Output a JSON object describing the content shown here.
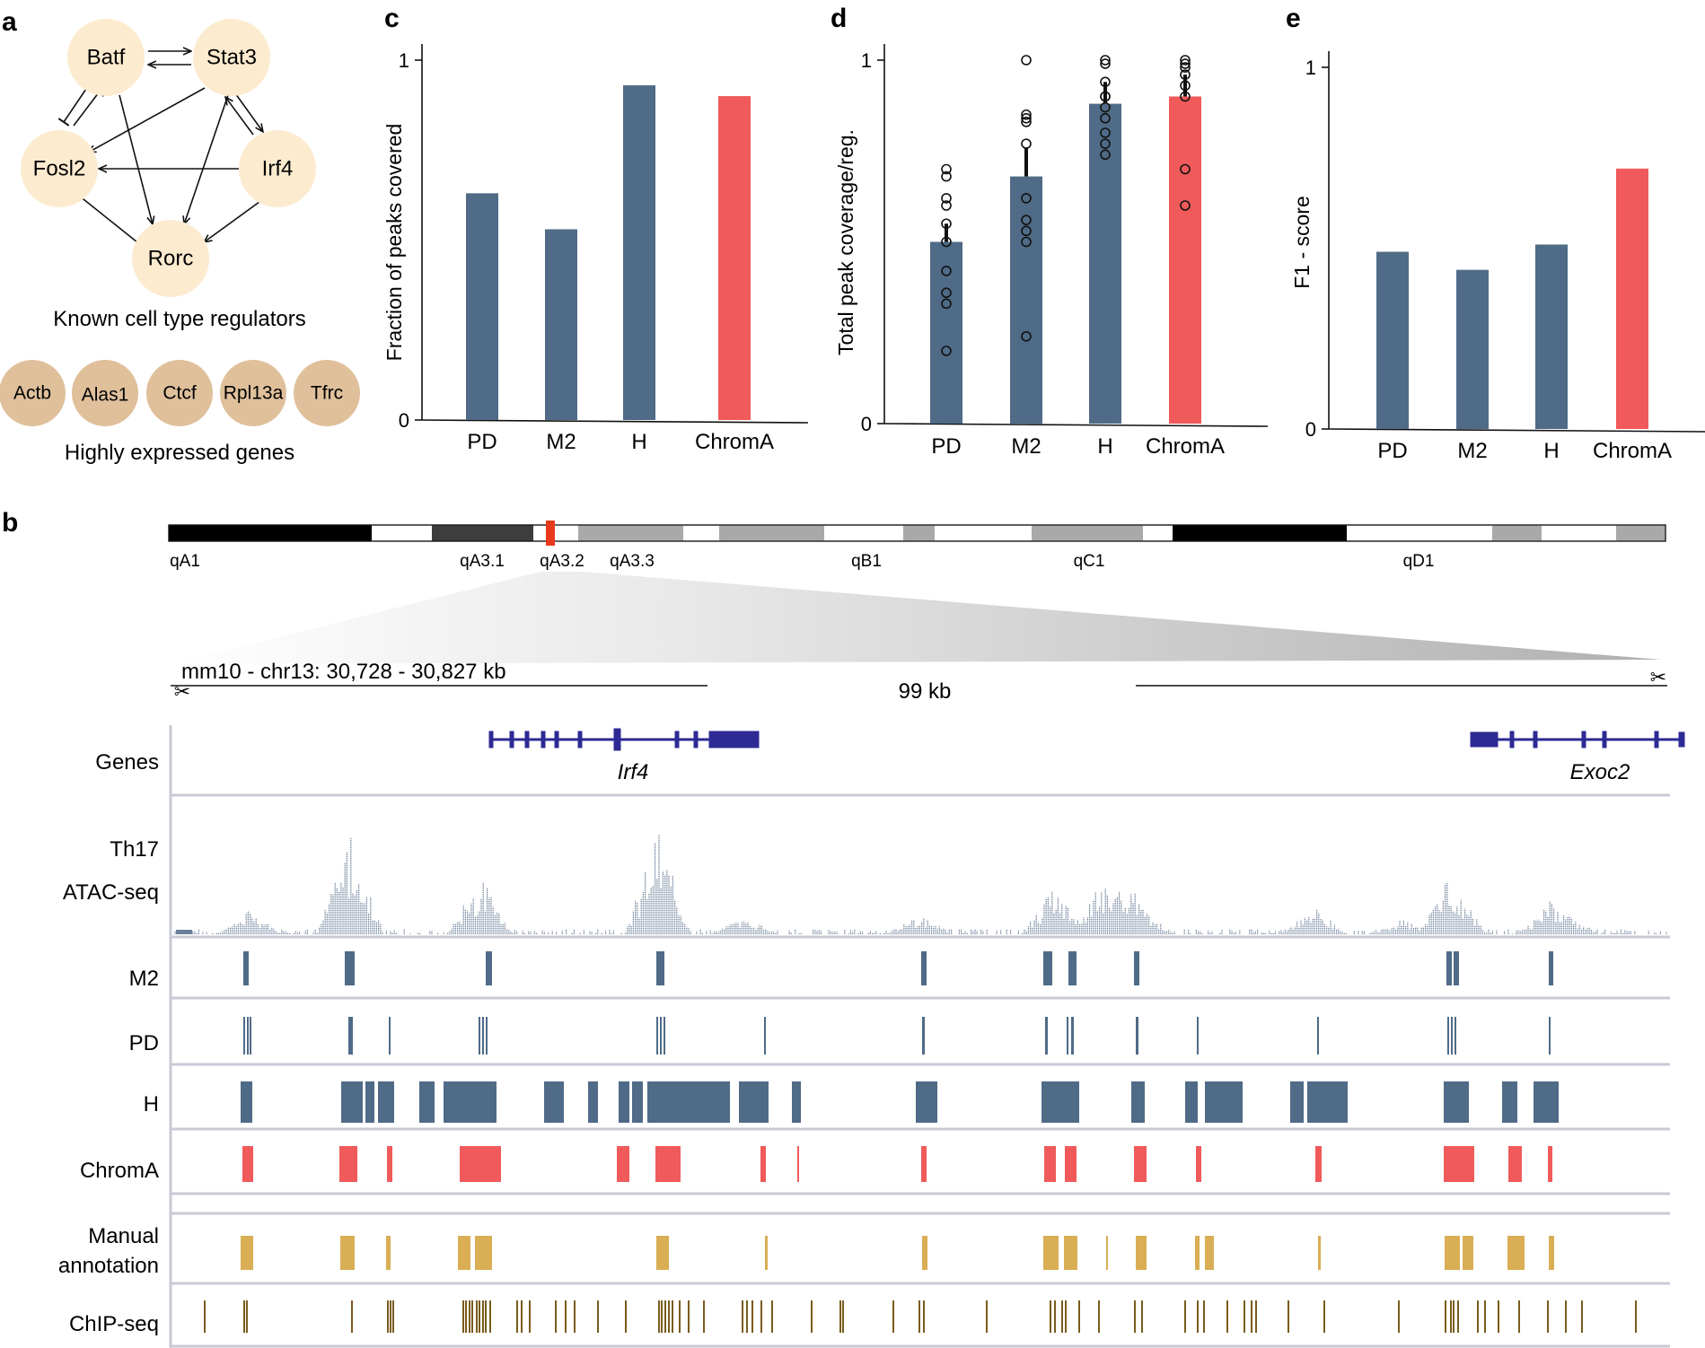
{
  "panel_letters": {
    "a": "a",
    "b": "b",
    "c": "c",
    "d": "d",
    "e": "e"
  },
  "network": {
    "nodes": [
      "Batf",
      "Stat3",
      "Fosl2",
      "Irf4",
      "Rorc"
    ],
    "caption": "Known cell type regulators",
    "housekeeping": [
      "Actb",
      "Alas1",
      "Ctcf",
      "Rpl13a",
      "Tfrc"
    ],
    "housekeeping_caption": "Highly expressed genes",
    "node_color": "#fdebd0",
    "housekeeping_color": "#dfc09b"
  },
  "colors": {
    "method": "#4f6b87",
    "chroma": "#f05a5a",
    "gene": "#2e2a94",
    "manual": "#d9ae55",
    "chip": "#7a5c1e"
  },
  "chart_data": [
    {
      "id": "c",
      "type": "bar",
      "categories": [
        "PD",
        "M2",
        "H",
        "ChromA"
      ],
      "values": [
        0.63,
        0.53,
        0.93,
        0.9
      ],
      "ylabel": "Fraction of peaks covered",
      "yticks": [
        "0",
        "1"
      ],
      "ylim": [
        0,
        1
      ]
    },
    {
      "id": "d",
      "type": "bar",
      "categories": [
        "PD",
        "M2",
        "H",
        "ChromA"
      ],
      "values": [
        0.5,
        0.68,
        0.88,
        0.9
      ],
      "errors": [
        0.05,
        0.08,
        0.06,
        0.06
      ],
      "points": [
        [
          0.2,
          0.33,
          0.36,
          0.42,
          0.5,
          0.55,
          0.6,
          0.62,
          0.68,
          0.7
        ],
        [
          0.24,
          0.5,
          0.53,
          0.56,
          0.62,
          0.77,
          0.83,
          0.84,
          0.85,
          1.0
        ],
        [
          0.74,
          0.77,
          0.8,
          0.84,
          0.87,
          0.9,
          0.9,
          0.94,
          0.99,
          1.0
        ],
        [
          0.6,
          0.7,
          0.9,
          0.93,
          0.96,
          0.98,
          0.99,
          1.0
        ]
      ],
      "ylabel": "Total peak coverage/reg.",
      "yticks": [
        "0",
        "1"
      ],
      "ylim": [
        0,
        1
      ]
    },
    {
      "id": "e",
      "type": "bar",
      "categories": [
        "PD",
        "M2",
        "H",
        "ChromA"
      ],
      "values": [
        0.49,
        0.44,
        0.51,
        0.72
      ],
      "ylabel": "F1 - score",
      "yticks": [
        "0",
        "1"
      ],
      "ylim": [
        0,
        1
      ]
    }
  ],
  "browser": {
    "bands": [
      "qA1",
      "qA3.1",
      "qA3.2",
      "qA3.3",
      "qB1",
      "qC1",
      "qD1"
    ],
    "locus": "mm10 - chr13: 30,728 - 30,827 kb",
    "span": "99 kb",
    "genes": [
      "Irf4",
      "Exoc2"
    ],
    "tracks": {
      "genes": "Genes",
      "atac_1": "Th17",
      "atac_2": "ATAC-seq",
      "m2": "M2",
      "pd": "PD",
      "h": "H",
      "chroma": "ChromA",
      "manual_1": "Manual",
      "manual_2": "annotation",
      "chip": "ChIP-seq"
    }
  }
}
